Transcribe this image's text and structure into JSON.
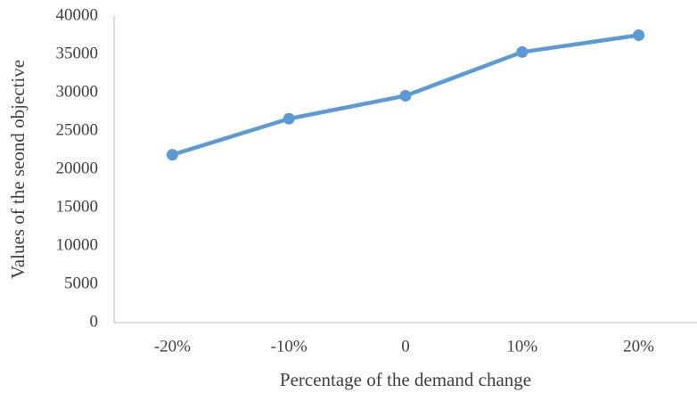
{
  "chart_data": {
    "type": "line",
    "xlabel": "Percentage of the demand change",
    "ylabel": "Values of the seond objective",
    "categories": [
      "-20%",
      "-10%",
      "0",
      "10%",
      "20%"
    ],
    "series": [
      {
        "name": "Values of the seond objective",
        "color": "#5b9bd5",
        "values": [
          21900,
          26600,
          29600,
          35300,
          37500
        ]
      }
    ],
    "ylim": [
      0,
      40000
    ],
    "yticks": [
      0,
      5000,
      10000,
      15000,
      20000,
      25000,
      30000,
      35000,
      40000
    ],
    "grid": false,
    "legend": false
  }
}
